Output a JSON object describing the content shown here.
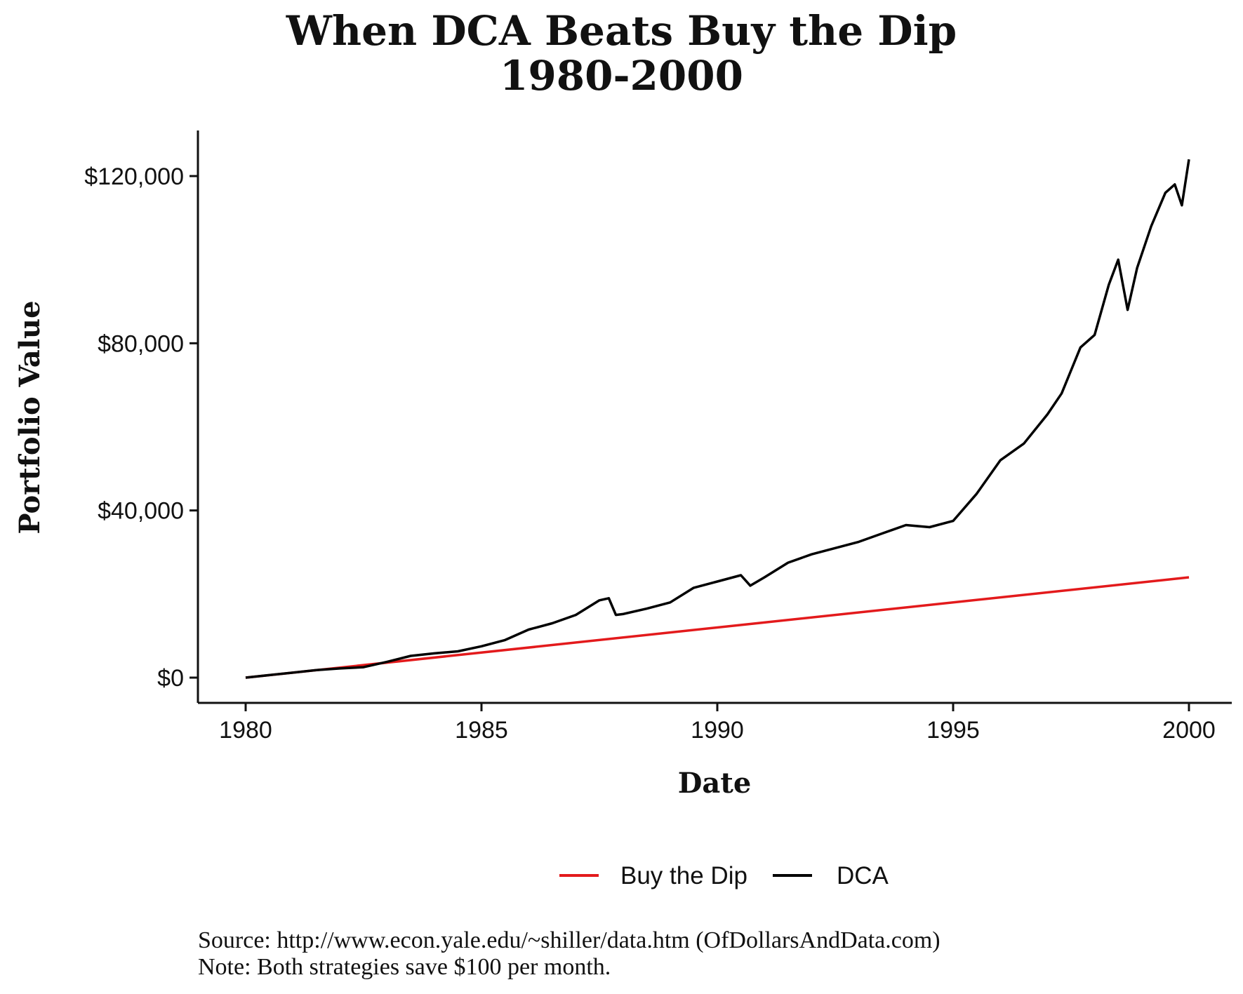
{
  "chart_data": {
    "type": "line",
    "title": "When DCA Beats Buy the Dip",
    "subtitle": "1980-2000",
    "xlabel": "Date",
    "ylabel": "Portfolio Value",
    "xlim": [
      1980,
      2000
    ],
    "ylim": [
      0,
      120000
    ],
    "x_ticks": [
      "1980",
      "1985",
      "1990",
      "1995",
      "2000"
    ],
    "y_ticks": [
      "$0",
      "$40,000",
      "$80,000",
      "$120,000"
    ],
    "grid": false,
    "legend_position": "bottom",
    "series": [
      {
        "name": "Buy the Dip",
        "color": "#e31a1c",
        "points": [
          [
            1980.0,
            0
          ],
          [
            2000.0,
            24000
          ]
        ]
      },
      {
        "name": "DCA",
        "color": "#000000",
        "points": [
          [
            1980.0,
            0
          ],
          [
            1980.5,
            600
          ],
          [
            1981.0,
            1200
          ],
          [
            1981.5,
            1800
          ],
          [
            1982.0,
            2200
          ],
          [
            1982.5,
            2500
          ],
          [
            1983.0,
            3800
          ],
          [
            1983.5,
            5200
          ],
          [
            1984.0,
            5800
          ],
          [
            1984.5,
            6300
          ],
          [
            1985.0,
            7500
          ],
          [
            1985.5,
            9000
          ],
          [
            1986.0,
            11500
          ],
          [
            1986.5,
            13000
          ],
          [
            1987.0,
            15000
          ],
          [
            1987.5,
            18500
          ],
          [
            1987.7,
            19000
          ],
          [
            1987.85,
            15000
          ],
          [
            1988.0,
            15200
          ],
          [
            1988.5,
            16500
          ],
          [
            1989.0,
            18000
          ],
          [
            1989.5,
            21500
          ],
          [
            1990.0,
            23000
          ],
          [
            1990.5,
            24500
          ],
          [
            1990.7,
            22000
          ],
          [
            1991.0,
            24000
          ],
          [
            1991.5,
            27500
          ],
          [
            1992.0,
            29500
          ],
          [
            1992.5,
            31000
          ],
          [
            1993.0,
            32500
          ],
          [
            1993.5,
            34500
          ],
          [
            1994.0,
            36500
          ],
          [
            1994.5,
            36000
          ],
          [
            1995.0,
            37500
          ],
          [
            1995.5,
            44000
          ],
          [
            1996.0,
            52000
          ],
          [
            1996.5,
            56000
          ],
          [
            1997.0,
            63000
          ],
          [
            1997.3,
            68000
          ],
          [
            1997.7,
            79000
          ],
          [
            1998.0,
            82000
          ],
          [
            1998.3,
            94000
          ],
          [
            1998.5,
            100000
          ],
          [
            1998.7,
            88000
          ],
          [
            1998.9,
            98000
          ],
          [
            1999.2,
            108000
          ],
          [
            1999.5,
            116000
          ],
          [
            1999.7,
            118000
          ],
          [
            1999.85,
            113000
          ],
          [
            2000.0,
            124000
          ]
        ]
      }
    ],
    "legend": [
      "Buy the Dip",
      "DCA"
    ]
  },
  "caption": {
    "source": "Source:  http://www.econ.yale.edu/~shiller/data.htm (OfDollarsAndData.com)",
    "note": "Note: Both strategies save $100 per month."
  }
}
